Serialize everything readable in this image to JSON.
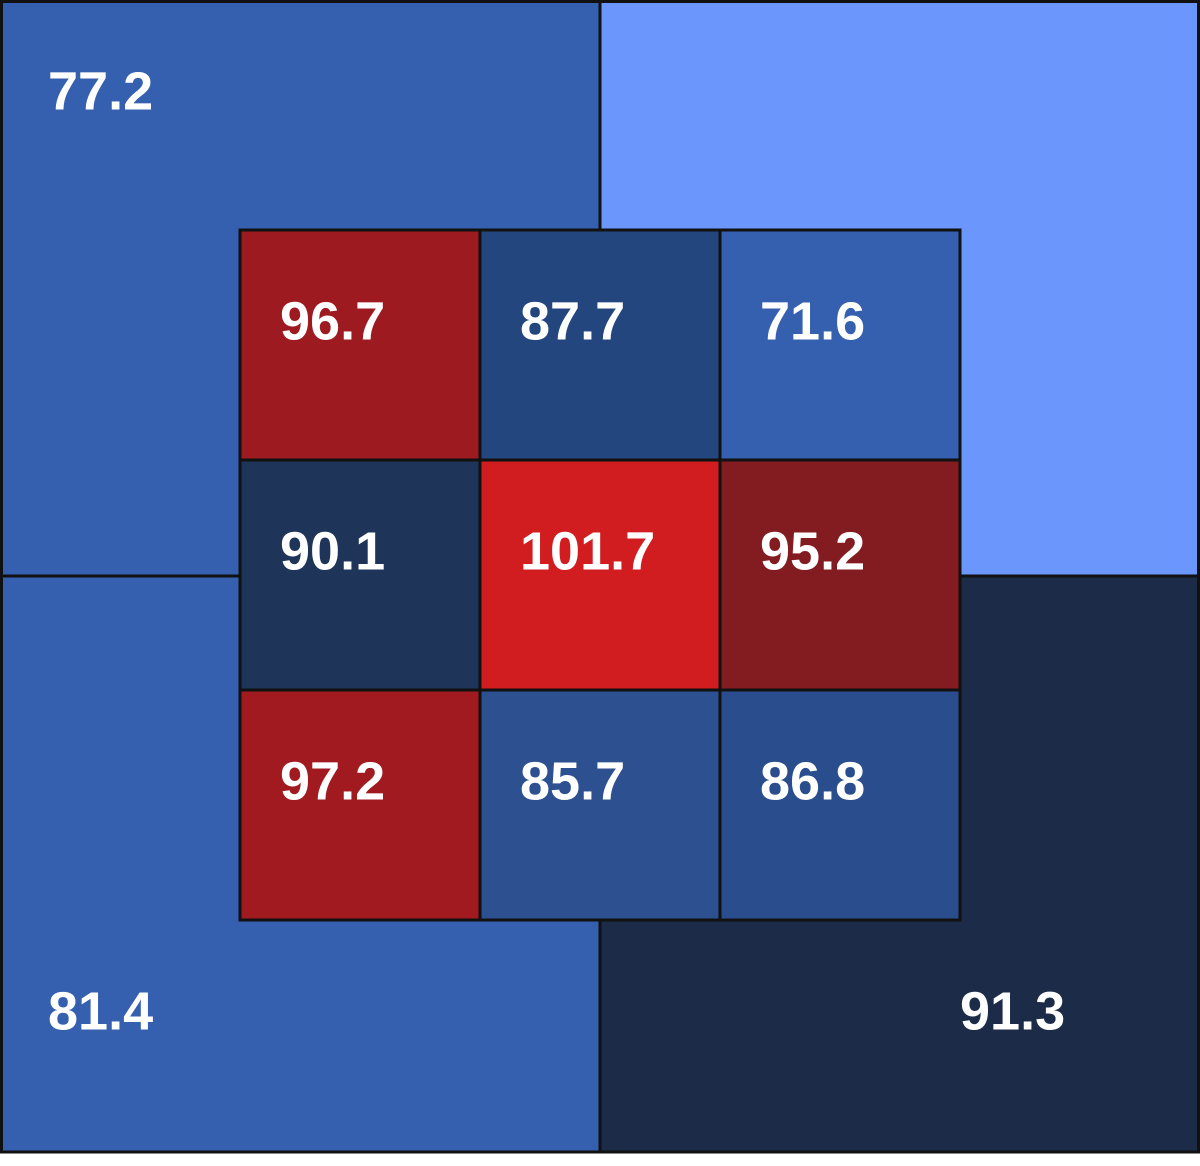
{
  "zones": {
    "outer": [
      {
        "value": 77.2,
        "color": "#3560b0"
      },
      {
        "color": "#6b97fd"
      },
      {
        "value": 81.4,
        "color": "#3560b0"
      },
      {
        "value": 91.3,
        "color": "#1c2b48"
      }
    ],
    "inner": [
      {
        "value": 96.7,
        "color": "#9c1a20"
      },
      {
        "value": 87.7,
        "color": "#24467e"
      },
      {
        "value": 71.6,
        "color": "#3560b0"
      },
      {
        "value": 90.1,
        "color": "#1e3459"
      },
      {
        "value": 101.7,
        "color": "#d11d20"
      },
      {
        "value": 95.2,
        "color": "#831c20"
      },
      {
        "value": 97.2,
        "color": "#a01a20"
      },
      {
        "value": 85.7,
        "color": "#2c5090"
      },
      {
        "value": 86.8,
        "color": "#2a4d8e"
      }
    ]
  }
}
